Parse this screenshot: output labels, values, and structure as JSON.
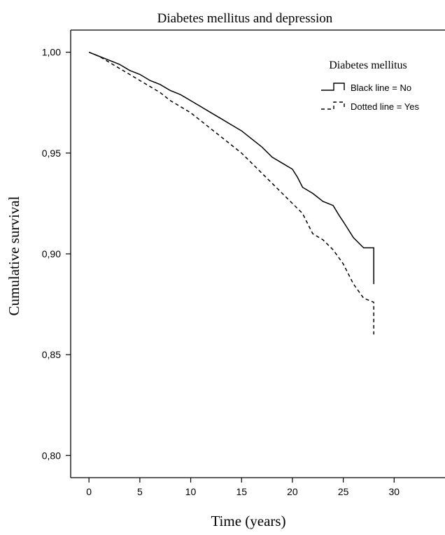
{
  "chart_data": {
    "type": "line",
    "title": "Diabetes mellitus and depression",
    "xlabel": "Time (years)",
    "ylabel": "Cumulative survival",
    "xlim": [
      -1.8,
      35
    ],
    "ylim": [
      0.789,
      1.011
    ],
    "xticks": [
      0,
      5,
      10,
      15,
      20,
      25,
      30
    ],
    "xtick_labels": [
      "0",
      "5",
      "10",
      "15",
      "20",
      "25",
      "30"
    ],
    "yticks": [
      0.8,
      0.85,
      0.9,
      0.95,
      1.0
    ],
    "ytick_labels": [
      "0,80",
      "0,85",
      "0,90",
      "0,95",
      "1,00"
    ],
    "grid": false,
    "legend": {
      "title": "Diabetes mellitus",
      "position": "top-right",
      "entries": [
        "Black line = No",
        "Dotted line = Yes"
      ]
    },
    "series": [
      {
        "style": "solid",
        "color": "#000000",
        "x": [
          0,
          1,
          2,
          3,
          4,
          5,
          6,
          7,
          8,
          9,
          10,
          11,
          12,
          13,
          14,
          15,
          16,
          17,
          18,
          19,
          20,
          20.5,
          21,
          22,
          23,
          24,
          24.6,
          25,
          26,
          27,
          28,
          28
        ],
        "y": [
          1.0,
          0.998,
          0.996,
          0.994,
          0.991,
          0.989,
          0.986,
          0.984,
          0.981,
          0.979,
          0.976,
          0.973,
          0.97,
          0.967,
          0.964,
          0.961,
          0.957,
          0.953,
          0.948,
          0.945,
          0.942,
          0.938,
          0.933,
          0.93,
          0.926,
          0.924,
          0.919,
          0.916,
          0.908,
          0.903,
          0.903,
          0.885
        ]
      },
      {
        "style": "dashed",
        "color": "#000000",
        "x": [
          0,
          1,
          2,
          3,
          4,
          5,
          6,
          7,
          8,
          9,
          10,
          11,
          12,
          13,
          14,
          15,
          16,
          17,
          18,
          19,
          20,
          21,
          21.5,
          22,
          23,
          24,
          25,
          26,
          27,
          28,
          28
        ],
        "y": [
          1.0,
          0.998,
          0.995,
          0.992,
          0.989,
          0.986,
          0.983,
          0.98,
          0.976,
          0.973,
          0.97,
          0.966,
          0.962,
          0.958,
          0.954,
          0.95,
          0.945,
          0.94,
          0.935,
          0.93,
          0.925,
          0.92,
          0.915,
          0.91,
          0.907,
          0.902,
          0.895,
          0.885,
          0.878,
          0.876,
          0.86
        ]
      }
    ]
  }
}
